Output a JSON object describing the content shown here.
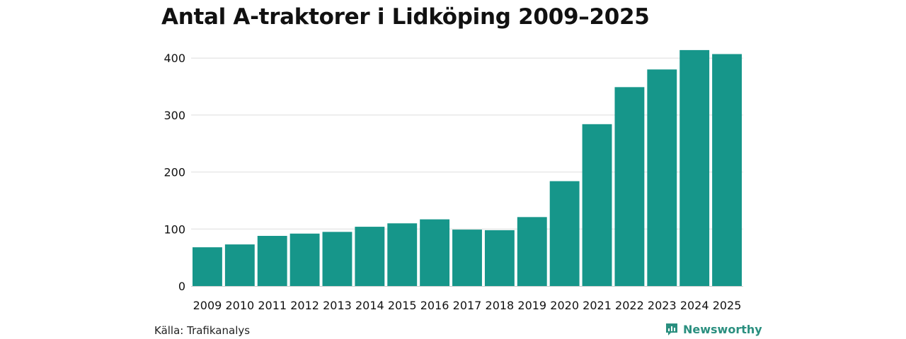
{
  "chart_data": {
    "type": "bar",
    "title": "Antal A-traktorer i Lidköping 2009–2025",
    "xlabel": "",
    "ylabel": "",
    "ylim": [
      0,
      420
    ],
    "yticks": [
      0,
      100,
      200,
      300,
      400
    ],
    "grid": true,
    "bar_color": "#16968a",
    "categories": [
      "2009",
      "2010",
      "2011",
      "2012",
      "2013",
      "2014",
      "2015",
      "2016",
      "2017",
      "2018",
      "2019",
      "2020",
      "2021",
      "2022",
      "2023",
      "2024",
      "2025"
    ],
    "values": [
      68,
      73,
      88,
      92,
      95,
      104,
      110,
      117,
      99,
      98,
      121,
      184,
      284,
      349,
      380,
      414,
      407
    ]
  },
  "footer": {
    "source": "Källa: Trafikanalys",
    "brand": "Newsworthy",
    "brand_color": "#2a8f7f",
    "brand_icon": "newsworthy-logo-icon"
  }
}
